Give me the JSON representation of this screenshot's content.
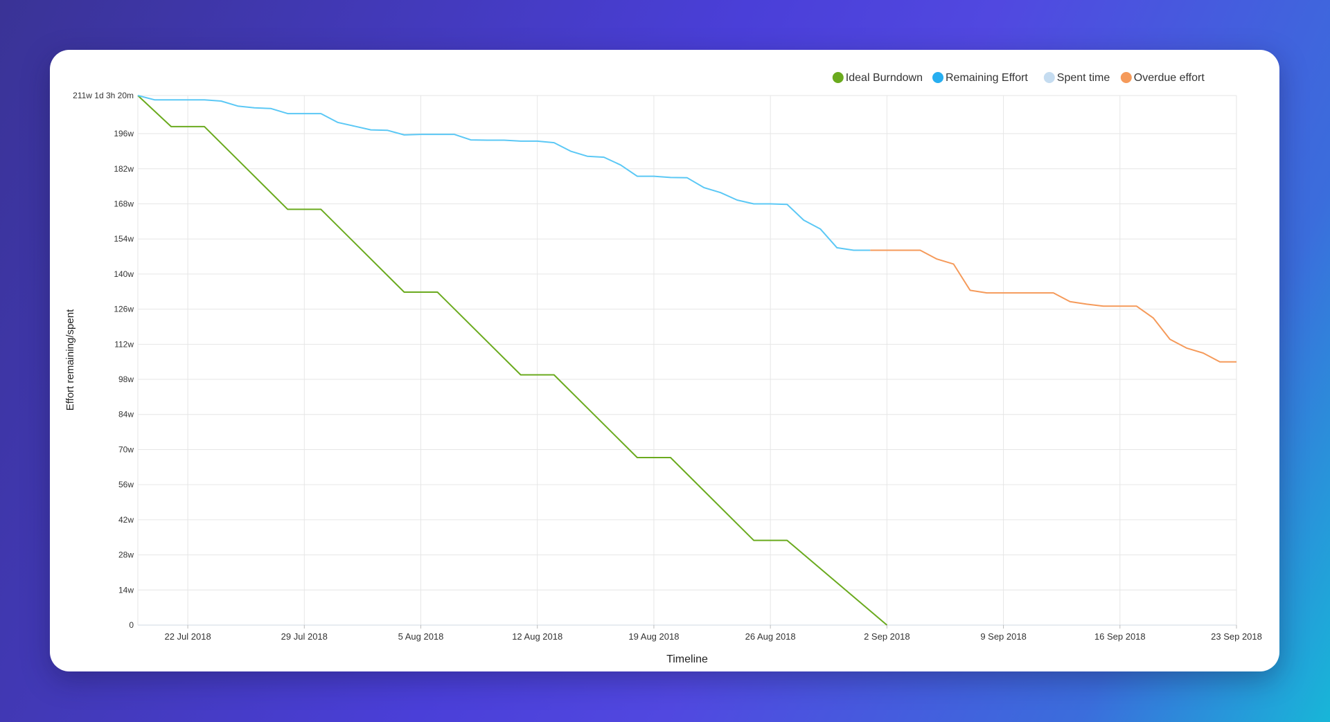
{
  "legend": {
    "items": [
      {
        "label": "Ideal Burndown",
        "color": "#6aaa1e"
      },
      {
        "label": "Remaining Effort",
        "color": "#27aef0"
      },
      {
        "label": "Spent time",
        "color": "#c5dcf0"
      },
      {
        "label": "Overdue effort",
        "color": "#f59a5a"
      }
    ]
  },
  "chart_data": {
    "type": "line",
    "xlabel": "Timeline",
    "ylabel": "Effort remaining/spent",
    "x_tick_labels": [
      "22 Jul 2018",
      "29 Jul 2018",
      "5 Aug 2018",
      "12 Aug 2018",
      "19 Aug 2018",
      "26 Aug 2018",
      "2 Sep 2018",
      "9 Sep 2018",
      "16 Sep 2018",
      "23 Sep 2018"
    ],
    "y_tick_labels": [
      "0",
      "14w",
      "28w",
      "42w",
      "56w",
      "70w",
      "84w",
      "98w",
      "112w",
      "126w",
      "140w",
      "154w",
      "168w",
      "182w",
      "196w",
      "211w 1d 3h 20m"
    ],
    "y_tick_values": [
      0,
      14,
      28,
      42,
      56,
      70,
      84,
      98,
      112,
      126,
      140,
      154,
      168,
      182,
      196,
      211.2
    ],
    "xlim": [
      "2018-07-19",
      "2018-09-23"
    ],
    "ylim": [
      0,
      211.2
    ],
    "grid": true,
    "legend_position": "top-right",
    "series": [
      {
        "name": "Ideal Burndown",
        "color": "#6aaa1e",
        "points": [
          [
            "2018-07-19",
            211.2
          ],
          [
            "2018-07-21",
            198.8
          ],
          [
            "2018-07-23",
            198.8
          ],
          [
            "2018-07-28",
            165.8
          ],
          [
            "2018-07-30",
            165.8
          ],
          [
            "2018-08-04",
            132.8
          ],
          [
            "2018-08-06",
            132.8
          ],
          [
            "2018-08-11",
            99.8
          ],
          [
            "2018-08-13",
            99.8
          ],
          [
            "2018-08-18",
            66.8
          ],
          [
            "2018-08-20",
            66.8
          ],
          [
            "2018-08-25",
            33.8
          ],
          [
            "2018-08-27",
            33.8
          ],
          [
            "2018-09-02",
            0
          ]
        ]
      },
      {
        "name": "Remaining Effort",
        "color": "#5bc8f5",
        "points": [
          [
            "2018-07-19",
            211.2
          ],
          [
            "2018-07-20",
            209.5
          ],
          [
            "2018-07-22",
            209.5
          ],
          [
            "2018-07-23",
            209.5
          ],
          [
            "2018-07-24",
            209.0
          ],
          [
            "2018-07-25",
            207.0
          ],
          [
            "2018-07-26",
            206.3
          ],
          [
            "2018-07-27",
            206.0
          ],
          [
            "2018-07-28",
            204.0
          ],
          [
            "2018-07-29",
            204.0
          ],
          [
            "2018-07-30",
            204.0
          ],
          [
            "2018-07-31",
            200.5
          ],
          [
            "2018-08-01",
            199.0
          ],
          [
            "2018-08-02",
            197.5
          ],
          [
            "2018-08-03",
            197.3
          ],
          [
            "2018-08-04",
            195.5
          ],
          [
            "2018-08-05",
            195.7
          ],
          [
            "2018-08-06",
            195.7
          ],
          [
            "2018-08-07",
            195.7
          ],
          [
            "2018-08-08",
            193.5
          ],
          [
            "2018-08-09",
            193.4
          ],
          [
            "2018-08-10",
            193.4
          ],
          [
            "2018-08-11",
            193.0
          ],
          [
            "2018-08-12",
            193.0
          ],
          [
            "2018-08-13",
            192.4
          ],
          [
            "2018-08-14",
            189.0
          ],
          [
            "2018-08-15",
            187.0
          ],
          [
            "2018-08-16",
            186.6
          ],
          [
            "2018-08-17",
            183.5
          ],
          [
            "2018-08-18",
            179.0
          ],
          [
            "2018-08-19",
            179.0
          ],
          [
            "2018-08-20",
            178.5
          ],
          [
            "2018-08-21",
            178.4
          ],
          [
            "2018-08-22",
            174.5
          ],
          [
            "2018-08-23",
            172.5
          ],
          [
            "2018-08-24",
            169.5
          ],
          [
            "2018-08-25",
            168.0
          ],
          [
            "2018-08-26",
            168.0
          ],
          [
            "2018-08-27",
            167.8
          ],
          [
            "2018-08-28",
            161.5
          ],
          [
            "2018-08-29",
            158.0
          ],
          [
            "2018-08-30",
            150.5
          ],
          [
            "2018-08-31",
            149.5
          ],
          [
            "2018-09-01",
            149.5
          ]
        ]
      },
      {
        "name": "Overdue effort",
        "color": "#f59a5a",
        "points": [
          [
            "2018-09-01",
            149.5
          ],
          [
            "2018-09-02",
            149.5
          ],
          [
            "2018-09-03",
            149.5
          ],
          [
            "2018-09-04",
            149.5
          ],
          [
            "2018-09-05",
            146.0
          ],
          [
            "2018-09-06",
            144.0
          ],
          [
            "2018-09-07",
            133.5
          ],
          [
            "2018-09-08",
            132.5
          ],
          [
            "2018-09-09",
            132.5
          ],
          [
            "2018-09-10",
            132.5
          ],
          [
            "2018-09-11",
            132.5
          ],
          [
            "2018-09-12",
            132.5
          ],
          [
            "2018-09-13",
            129.0
          ],
          [
            "2018-09-14",
            128.0
          ],
          [
            "2018-09-15",
            127.2
          ],
          [
            "2018-09-16",
            127.2
          ],
          [
            "2018-09-17",
            127.2
          ],
          [
            "2018-09-18",
            122.5
          ],
          [
            "2018-09-19",
            114.0
          ],
          [
            "2018-09-20",
            110.5
          ],
          [
            "2018-09-21",
            108.5
          ],
          [
            "2018-09-22",
            105.0
          ],
          [
            "2018-09-23",
            105.0
          ]
        ]
      }
    ]
  }
}
